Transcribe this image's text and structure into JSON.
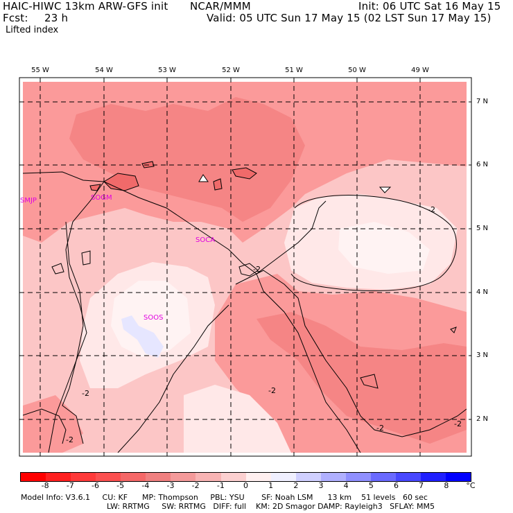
{
  "header": {
    "model": "HAIC-HIWC 13km ARW-GFS init",
    "org": "NCAR/MMM",
    "init": "Init: 06 UTC Sat 16 May 15",
    "fcst_label": "Fcst:",
    "fcst_value": "23 h",
    "valid": "Valid: 05 UTC Sun 17 May 15 (02 LST Sun 17 May 15)",
    "field": "Lifted index"
  },
  "map": {
    "lon_labels": [
      "55 W",
      "54 W",
      "53 W",
      "52 W",
      "51 W",
      "50 W",
      "49 W"
    ],
    "lat_labels": [
      "7 N",
      "6 N",
      "5 N",
      "4 N",
      "3 N",
      "2 N"
    ],
    "stations": [
      "SMJP",
      "SOGM",
      "SOCA",
      "SOOS"
    ],
    "contour_labels": [
      "-2",
      "-2",
      "-2",
      "-2",
      "-2",
      "-2",
      "-2"
    ],
    "colors": {
      "background": "#fcc6c6",
      "red_minus3": "#fb9a9a",
      "red_minus4": "#f58585",
      "red_minus5": "#f06a6a",
      "near_zero": "#ffe8e8",
      "pale": "#fff3f3",
      "blue_0_1": "#e6e6ff",
      "station_label": "#e000e0"
    }
  },
  "colorbar": {
    "ticks": [
      "-8",
      "-7",
      "-6",
      "-5",
      "-4",
      "-3",
      "-2",
      "-1",
      "0",
      "1",
      "2",
      "3",
      "4",
      "5",
      "6",
      "7",
      "8"
    ],
    "unit": "°C",
    "colors": [
      "#ff0000",
      "#ff2020",
      "#ff3a3a",
      "#fb5050",
      "#f56868",
      "#f08080",
      "#f49a9a",
      "#f8b4b4",
      "#fcd0d0",
      "#fff0f0",
      "#f0f0ff",
      "#d0d0ff",
      "#b0b0ff",
      "#9090ff",
      "#6a6aff",
      "#4848ff",
      "#2020ff",
      "#0000ff"
    ]
  },
  "footer": {
    "line1": "Model Info: V3.6.1     CU: KF      MP: Thompson     PBL: YSU       SF: Noah LSM      13 km    51 levels   60 sec",
    "line2": "LW: RRTMG     SW: RRTMG   DIFF: full    KM: 2D Smagor DAMP: Rayleigh3   SFLAY: MM5"
  }
}
